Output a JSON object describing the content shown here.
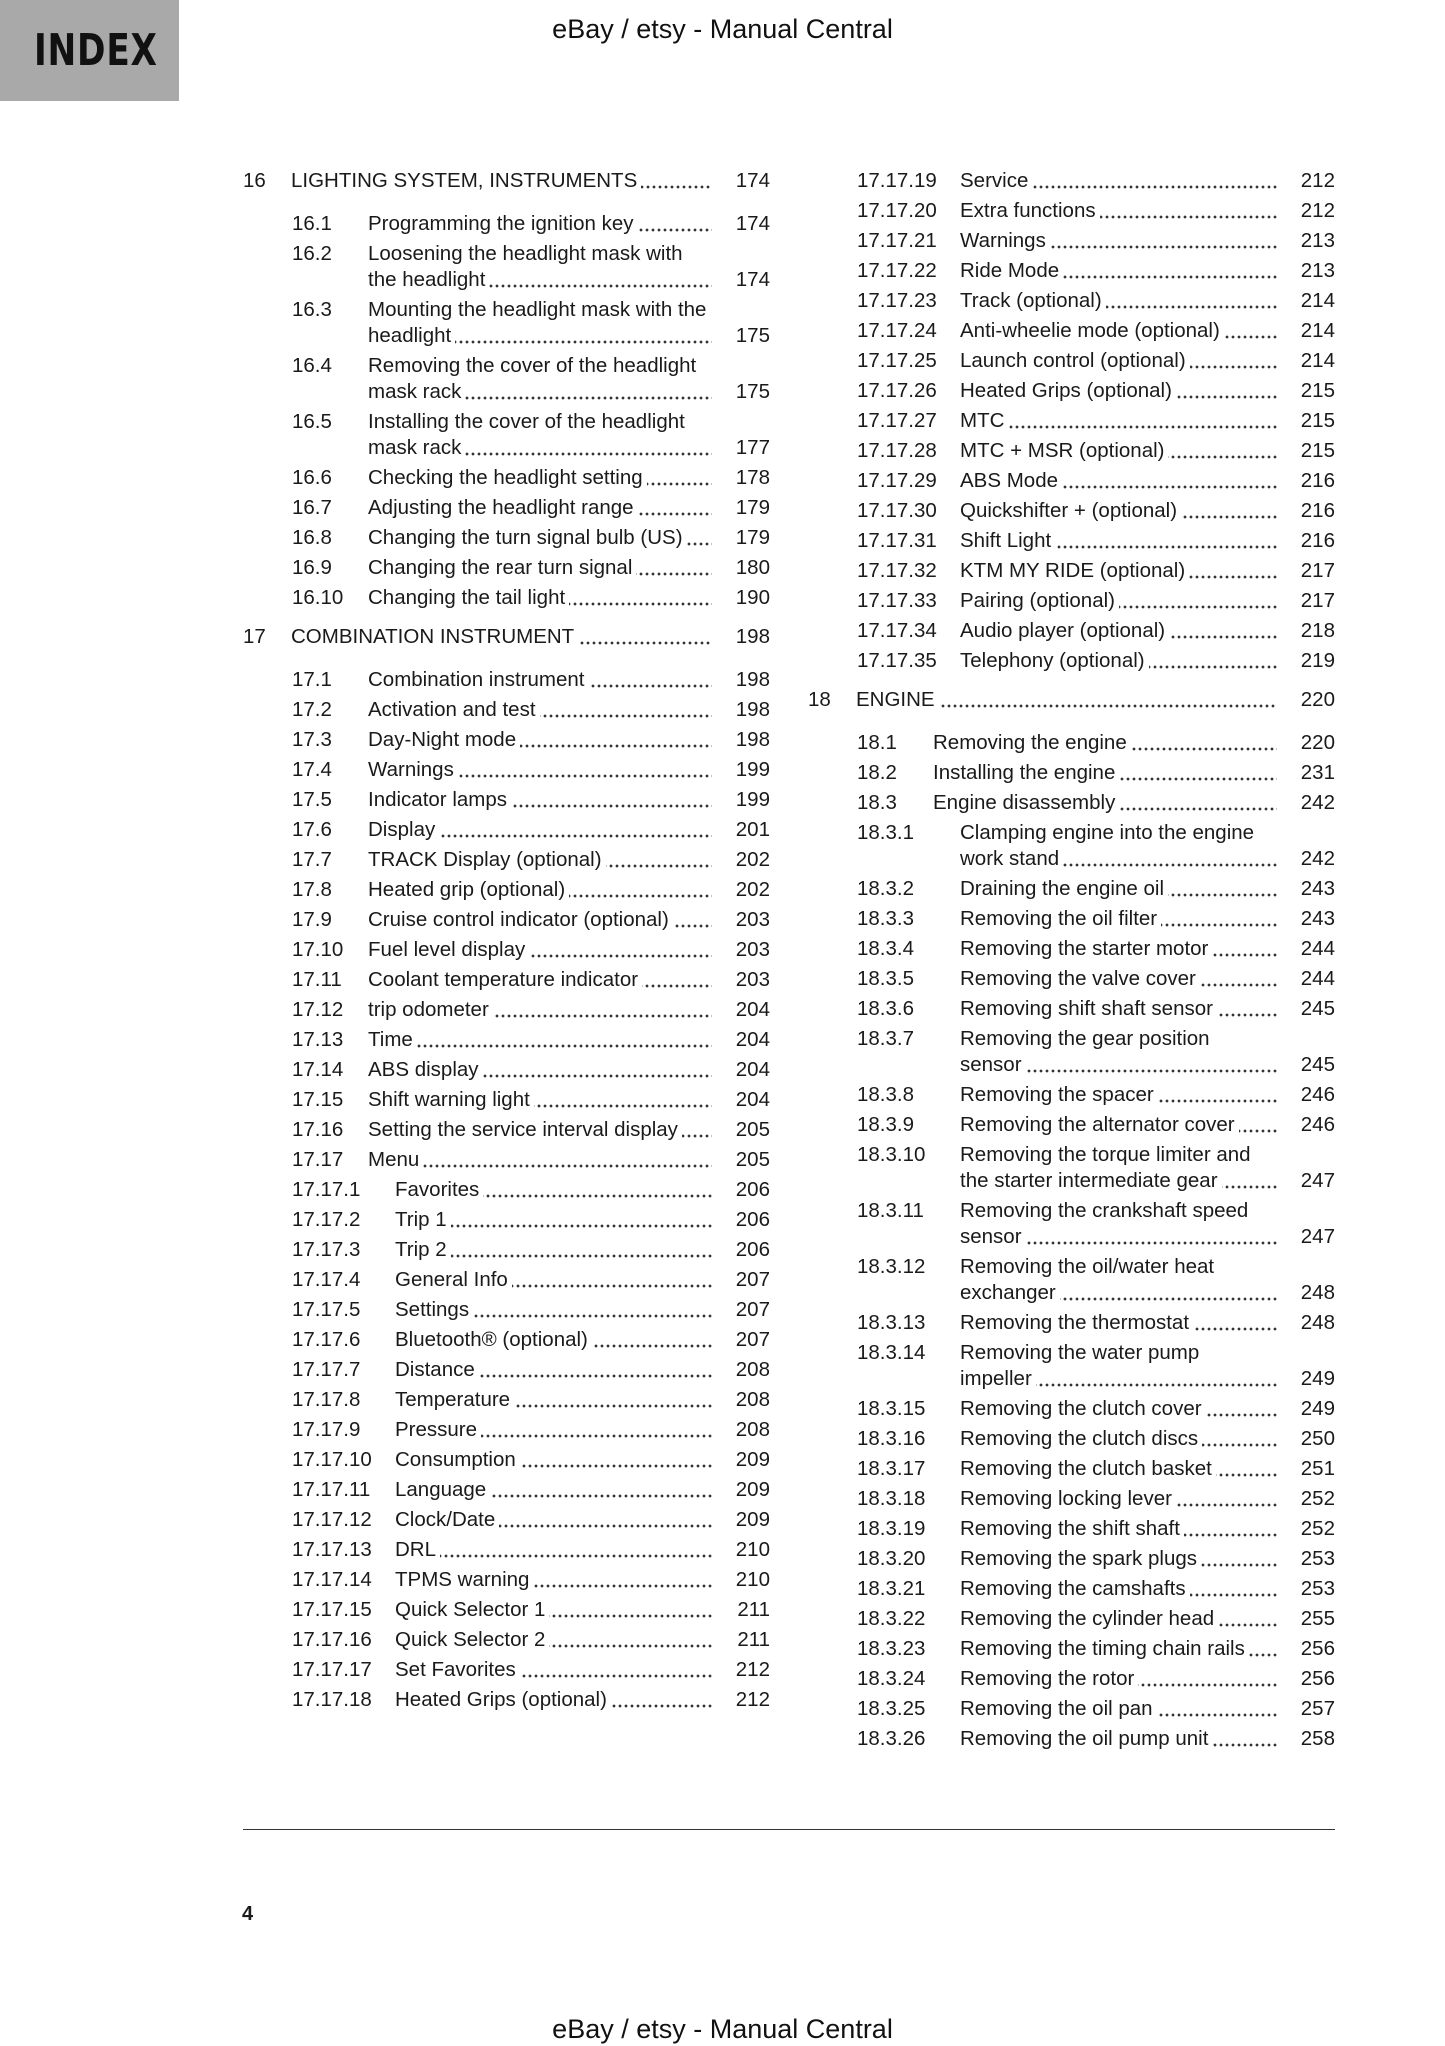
{
  "tab": {
    "label": "INDEX"
  },
  "header": {
    "text": "eBay / etsy - Manual Central"
  },
  "footer": {
    "text": "eBay / etsy - Manual Central",
    "page_number": "4"
  },
  "left_column": [
    {
      "level": "chapter",
      "num": "16",
      "title": "LIGHTING SYSTEM, INSTRUMENTS",
      "page": "174"
    },
    {
      "level": "l2",
      "num": "16.1",
      "title": "Programming the ignition key",
      "page": "174"
    },
    {
      "level": "l2",
      "num": "16.2",
      "title": "Loosening the headlight mask with the headlight",
      "page": "174"
    },
    {
      "level": "l2",
      "num": "16.3",
      "title": "Mounting the headlight mask with the headlight",
      "page": "175"
    },
    {
      "level": "l2",
      "num": "16.4",
      "title": "Removing the cover of the headlight mask rack",
      "page": "175"
    },
    {
      "level": "l2",
      "num": "16.5",
      "title": "Installing the cover of the headlight mask rack",
      "page": "177"
    },
    {
      "level": "l2",
      "num": "16.6",
      "title": "Checking the headlight setting",
      "page": "178"
    },
    {
      "level": "l2",
      "num": "16.7",
      "title": "Adjusting the headlight range",
      "page": "179"
    },
    {
      "level": "l2",
      "num": "16.8",
      "title": "Changing the turn signal bulb (US)",
      "page": "179"
    },
    {
      "level": "l2",
      "num": "16.9",
      "title": "Changing the rear turn signal",
      "page": "180"
    },
    {
      "level": "l2",
      "num": "16.10",
      "title": "Changing the tail light",
      "page": "190"
    },
    {
      "level": "chapter",
      "num": "17",
      "title": "COMBINATION INSTRUMENT",
      "page": "198"
    },
    {
      "level": "l2",
      "num": "17.1",
      "title": "Combination instrument",
      "page": "198"
    },
    {
      "level": "l2",
      "num": "17.2",
      "title": "Activation and test",
      "page": "198"
    },
    {
      "level": "l2",
      "num": "17.3",
      "title": "Day-Night mode",
      "page": "198"
    },
    {
      "level": "l2",
      "num": "17.4",
      "title": "Warnings",
      "page": "199"
    },
    {
      "level": "l2",
      "num": "17.5",
      "title": "Indicator lamps",
      "page": "199"
    },
    {
      "level": "l2",
      "num": "17.6",
      "title": "Display",
      "page": "201"
    },
    {
      "level": "l2",
      "num": "17.7",
      "title": "TRACK Display (optional)",
      "page": "202"
    },
    {
      "level": "l2",
      "num": "17.8",
      "title": "Heated grip (optional)",
      "page": "202"
    },
    {
      "level": "l2",
      "num": "17.9",
      "title": "Cruise control indicator (optional)",
      "page": "203"
    },
    {
      "level": "l2",
      "num": "17.10",
      "title": "Fuel level display",
      "page": "203"
    },
    {
      "level": "l2",
      "num": "17.11",
      "title": "Coolant temperature indicator",
      "page": "203"
    },
    {
      "level": "l2",
      "num": "17.12",
      "title": "trip odometer",
      "page": "204"
    },
    {
      "level": "l2",
      "num": "17.13",
      "title": "Time",
      "page": "204"
    },
    {
      "level": "l2",
      "num": "17.14",
      "title": "ABS display",
      "page": "204"
    },
    {
      "level": "l2",
      "num": "17.15",
      "title": "Shift warning light",
      "page": "204"
    },
    {
      "level": "l2",
      "num": "17.16",
      "title": "Setting the service interval display",
      "page": "205"
    },
    {
      "level": "l2",
      "num": "17.17",
      "title": "Menu",
      "page": "205"
    },
    {
      "level": "l3",
      "num": "17.17.1",
      "title": "Favorites",
      "page": "206"
    },
    {
      "level": "l3",
      "num": "17.17.2",
      "title": "Trip 1",
      "page": "206"
    },
    {
      "level": "l3",
      "num": "17.17.3",
      "title": "Trip 2",
      "page": "206"
    },
    {
      "level": "l3",
      "num": "17.17.4",
      "title": "General Info",
      "page": "207"
    },
    {
      "level": "l3",
      "num": "17.17.5",
      "title": "Settings",
      "page": "207"
    },
    {
      "level": "l3",
      "num": "17.17.6",
      "title": "Bluetooth® (optional)",
      "page": "207"
    },
    {
      "level": "l3",
      "num": "17.17.7",
      "title": "Distance",
      "page": "208"
    },
    {
      "level": "l3",
      "num": "17.17.8",
      "title": "Temperature",
      "page": "208"
    },
    {
      "level": "l3",
      "num": "17.17.9",
      "title": "Pressure",
      "page": "208"
    },
    {
      "level": "l3",
      "num": "17.17.10",
      "title": "Consumption",
      "page": "209"
    },
    {
      "level": "l3",
      "num": "17.17.11",
      "title": "Language",
      "page": "209"
    },
    {
      "level": "l3",
      "num": "17.17.12",
      "title": "Clock/Date",
      "page": "209"
    },
    {
      "level": "l3",
      "num": "17.17.13",
      "title": "DRL",
      "page": "210"
    },
    {
      "level": "l3",
      "num": "17.17.14",
      "title": "TPMS warning",
      "page": "210"
    },
    {
      "level": "l3",
      "num": "17.17.15",
      "title": "Quick Selector 1",
      "page": "211"
    },
    {
      "level": "l3",
      "num": "17.17.16",
      "title": "Quick Selector 2",
      "page": "211"
    },
    {
      "level": "l3",
      "num": "17.17.17",
      "title": "Set Favorites",
      "page": "212"
    },
    {
      "level": "l3",
      "num": "17.17.18",
      "title": "Heated Grips (optional)",
      "page": "212"
    }
  ],
  "right_column": [
    {
      "level": "l3",
      "num": "17.17.19",
      "title": "Service",
      "page": "212"
    },
    {
      "level": "l3",
      "num": "17.17.20",
      "title": "Extra functions",
      "page": "212"
    },
    {
      "level": "l3",
      "num": "17.17.21",
      "title": "Warnings",
      "page": "213"
    },
    {
      "level": "l3",
      "num": "17.17.22",
      "title": "Ride Mode",
      "page": "213"
    },
    {
      "level": "l3",
      "num": "17.17.23",
      "title": "Track (optional)",
      "page": "214"
    },
    {
      "level": "l3",
      "num": "17.17.24",
      "title": "Anti-wheelie mode (optional)",
      "page": "214"
    },
    {
      "level": "l3",
      "num": "17.17.25",
      "title": "Launch control (optional)",
      "page": "214"
    },
    {
      "level": "l3",
      "num": "17.17.26",
      "title": "Heated Grips (optional)",
      "page": "215"
    },
    {
      "level": "l3",
      "num": "17.17.27",
      "title": "MTC",
      "page": "215"
    },
    {
      "level": "l3",
      "num": "17.17.28",
      "title": "MTC + MSR (optional)",
      "page": "215"
    },
    {
      "level": "l3",
      "num": "17.17.29",
      "title": "ABS Mode",
      "page": "216"
    },
    {
      "level": "l3",
      "num": "17.17.30",
      "title": "Quickshifter + (optional)",
      "page": "216"
    },
    {
      "level": "l3",
      "num": "17.17.31",
      "title": "Shift Light",
      "page": "216"
    },
    {
      "level": "l3",
      "num": "17.17.32",
      "title": "KTM MY RIDE (optional)",
      "page": "217"
    },
    {
      "level": "l3",
      "num": "17.17.33",
      "title": "Pairing (optional)",
      "page": "217"
    },
    {
      "level": "l3",
      "num": "17.17.34",
      "title": "Audio player (optional)",
      "page": "218"
    },
    {
      "level": "l3",
      "num": "17.17.35",
      "title": "Telephony (optional)",
      "page": "219"
    },
    {
      "level": "chapter",
      "num": "18",
      "title": "ENGINE",
      "page": "220"
    },
    {
      "level": "l2",
      "num": "18.1",
      "title": "Removing the engine",
      "page": "220"
    },
    {
      "level": "l2",
      "num": "18.2",
      "title": "Installing the engine",
      "page": "231"
    },
    {
      "level": "l2",
      "num": "18.3",
      "title": "Engine disassembly",
      "page": "242"
    },
    {
      "level": "l3",
      "num": "18.3.1",
      "title": "Clamping engine into the engine work stand",
      "page": "242"
    },
    {
      "level": "l3",
      "num": "18.3.2",
      "title": "Draining the engine oil",
      "page": "243"
    },
    {
      "level": "l3",
      "num": "18.3.3",
      "title": "Removing the oil filter",
      "page": "243"
    },
    {
      "level": "l3",
      "num": "18.3.4",
      "title": "Removing the starter motor",
      "page": "244"
    },
    {
      "level": "l3",
      "num": "18.3.5",
      "title": "Removing the valve cover",
      "page": "244"
    },
    {
      "level": "l3",
      "num": "18.3.6",
      "title": "Removing shift shaft sensor",
      "page": "245"
    },
    {
      "level": "l3",
      "num": "18.3.7",
      "title": "Removing the gear position sensor",
      "page": "245"
    },
    {
      "level": "l3",
      "num": "18.3.8",
      "title": "Removing the spacer",
      "page": "246"
    },
    {
      "level": "l3",
      "num": "18.3.9",
      "title": "Removing the alternator cover",
      "page": "246"
    },
    {
      "level": "l3",
      "num": "18.3.10",
      "title": "Removing the torque limiter and the starter intermediate gear",
      "page": "247"
    },
    {
      "level": "l3",
      "num": "18.3.11",
      "title": "Removing the crankshaft speed sensor",
      "page": "247"
    },
    {
      "level": "l3",
      "num": "18.3.12",
      "title": "Removing the oil/water heat exchanger",
      "page": "248"
    },
    {
      "level": "l3",
      "num": "18.3.13",
      "title": "Removing the thermostat",
      "page": "248"
    },
    {
      "level": "l3",
      "num": "18.3.14",
      "title": "Removing the water pump impeller",
      "page": "249"
    },
    {
      "level": "l3",
      "num": "18.3.15",
      "title": "Removing the clutch cover",
      "page": "249"
    },
    {
      "level": "l3",
      "num": "18.3.16",
      "title": "Removing the clutch discs",
      "page": "250"
    },
    {
      "level": "l3",
      "num": "18.3.17",
      "title": "Removing the clutch basket",
      "page": "251"
    },
    {
      "level": "l3",
      "num": "18.3.18",
      "title": "Removing locking lever",
      "page": "252"
    },
    {
      "level": "l3",
      "num": "18.3.19",
      "title": "Removing the shift shaft",
      "page": "252"
    },
    {
      "level": "l3",
      "num": "18.3.20",
      "title": "Removing the spark plugs",
      "page": "253"
    },
    {
      "level": "l3",
      "num": "18.3.21",
      "title": "Removing the camshafts",
      "page": "253"
    },
    {
      "level": "l3",
      "num": "18.3.22",
      "title": "Removing the cylinder head",
      "page": "255"
    },
    {
      "level": "l3",
      "num": "18.3.23",
      "title": "Removing the timing chain rails",
      "page": "256"
    },
    {
      "level": "l3",
      "num": "18.3.24",
      "title": "Removing the rotor",
      "page": "256"
    },
    {
      "level": "l3",
      "num": "18.3.25",
      "title": "Removing the oil pan",
      "page": "257"
    },
    {
      "level": "l3",
      "num": "18.3.26",
      "title": "Removing the oil pump unit",
      "page": "258"
    }
  ]
}
